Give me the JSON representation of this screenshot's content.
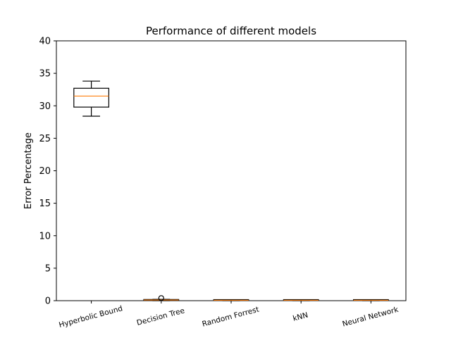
{
  "chart_data": {
    "type": "boxplot",
    "title": "Performance of different models",
    "xlabel": "",
    "ylabel": "Error Percentage",
    "ylim": [
      0,
      40
    ],
    "yticks": [
      0,
      5,
      10,
      15,
      20,
      25,
      30,
      35,
      40
    ],
    "grid": false,
    "categories": [
      "Hyperbolic Bound",
      "Decision Tree",
      "Random Forrest",
      "kNN",
      "Neural Network"
    ],
    "boxes": [
      {
        "category": "Hyperbolic Bound",
        "whisker_low": 28.4,
        "q1": 29.8,
        "median": 31.5,
        "q3": 32.7,
        "whisker_high": 33.8,
        "fliers": []
      },
      {
        "category": "Decision Tree",
        "whisker_low": 0.0,
        "q1": 0.05,
        "median": 0.1,
        "q3": 0.15,
        "whisker_high": 0.2,
        "fliers": [
          0.4
        ]
      },
      {
        "category": "Random Forrest",
        "whisker_low": 0.0,
        "q1": 0.03,
        "median": 0.06,
        "q3": 0.1,
        "whisker_high": 0.15,
        "fliers": []
      },
      {
        "category": "kNN",
        "whisker_low": 0.0,
        "q1": 0.03,
        "median": 0.06,
        "q3": 0.1,
        "whisker_high": 0.15,
        "fliers": []
      },
      {
        "category": "Neural Network",
        "whisker_low": 0.0,
        "q1": 0.03,
        "median": 0.06,
        "q3": 0.1,
        "whisker_high": 0.15,
        "fliers": []
      }
    ],
    "colors": {
      "box": "#000000",
      "median": "#ff7f0e",
      "axes": "#000000",
      "background": "#ffffff"
    }
  }
}
